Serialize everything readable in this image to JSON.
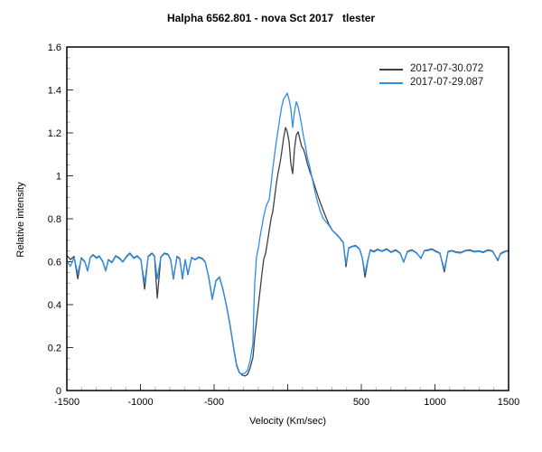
{
  "title": "Halpha 6562.801 - nova Sct 2017   tlester",
  "legend": {
    "position": "top-right-inside",
    "items": [
      {
        "label": "2017-07-30.072",
        "color": "#3C4148"
      },
      {
        "label": "2017-07-29.087",
        "color": "#2E8FE8"
      }
    ]
  },
  "chart_data": {
    "type": "line",
    "title": "Halpha 6562.801 - nova Sct 2017   tlester",
    "xlabel": "Velocity (Km/sec)",
    "ylabel": "Relative intensity",
    "xlim": [
      -1500,
      1500
    ],
    "ylim": [
      0,
      1.6
    ],
    "grid": false,
    "x_minor_step": 100,
    "x_major_step": 500,
    "y_minor_step": 0.05,
    "y_major_step": 0.2,
    "x_tick_label_values": [
      -1500,
      -1000,
      -500,
      500,
      1000,
      1500
    ],
    "x_tick_labels": [
      "-1500",
      "-1000",
      "-500",
      "500",
      "1000",
      "1500"
    ],
    "y_tick_label_values": [
      0,
      0.2,
      0.4,
      0.6,
      0.8,
      1,
      1.2,
      1.4,
      1.6
    ],
    "y_tick_labels": [
      "0",
      "0.2",
      "0.4",
      "0.6",
      "0.8",
      "1",
      "1.2",
      "1.4",
      "1.6"
    ],
    "legend_position": "top-right-inside",
    "series": [
      {
        "name": "2017-07-30.072",
        "color": "#3C4148",
        "points": [
          [
            -1500,
            0.63
          ],
          [
            -1476,
            0.61
          ],
          [
            -1451,
            0.625
          ],
          [
            -1426,
            0.52
          ],
          [
            -1402,
            0.618
          ],
          [
            -1377,
            0.6
          ],
          [
            -1359,
            0.558
          ],
          [
            -1341,
            0.62
          ],
          [
            -1322,
            0.633
          ],
          [
            -1298,
            0.618
          ],
          [
            -1279,
            0.627
          ],
          [
            -1255,
            0.6
          ],
          [
            -1236,
            0.558
          ],
          [
            -1218,
            0.61
          ],
          [
            -1193,
            0.598
          ],
          [
            -1169,
            0.628
          ],
          [
            -1144,
            0.618
          ],
          [
            -1120,
            0.6
          ],
          [
            -1095,
            0.625
          ],
          [
            -1071,
            0.64
          ],
          [
            -1046,
            0.618
          ],
          [
            -1022,
            0.628
          ],
          [
            -997,
            0.61
          ],
          [
            -972,
            0.472
          ],
          [
            -948,
            0.625
          ],
          [
            -923,
            0.64
          ],
          [
            -905,
            0.628
          ],
          [
            -886,
            0.43
          ],
          [
            -862,
            0.622
          ],
          [
            -838,
            0.64
          ],
          [
            -813,
            0.635
          ],
          [
            -795,
            0.61
          ],
          [
            -776,
            0.52
          ],
          [
            -752,
            0.625
          ],
          [
            -733,
            0.615
          ],
          [
            -715,
            0.52
          ],
          [
            -696,
            0.61
          ],
          [
            -678,
            0.54
          ],
          [
            -653,
            0.62
          ],
          [
            -629,
            0.61
          ],
          [
            -604,
            0.622
          ],
          [
            -580,
            0.615
          ],
          [
            -561,
            0.6
          ],
          [
            -537,
            0.53
          ],
          [
            -512,
            0.425
          ],
          [
            -488,
            0.51
          ],
          [
            -463,
            0.528
          ],
          [
            -439,
            0.47
          ],
          [
            -414,
            0.39
          ],
          [
            -390,
            0.3
          ],
          [
            -365,
            0.19
          ],
          [
            -347,
            0.12
          ],
          [
            -328,
            0.085
          ],
          [
            -310,
            0.072
          ],
          [
            -291,
            0.068
          ],
          [
            -273,
            0.075
          ],
          [
            -255,
            0.105
          ],
          [
            -236,
            0.155
          ],
          [
            -230,
            0.2
          ],
          [
            -224,
            0.25
          ],
          [
            -212,
            0.32
          ],
          [
            -199,
            0.4
          ],
          [
            -187,
            0.47
          ],
          [
            -175,
            0.545
          ],
          [
            -163,
            0.61
          ],
          [
            -150,
            0.64
          ],
          [
            -138,
            0.69
          ],
          [
            -126,
            0.745
          ],
          [
            -113,
            0.8
          ],
          [
            -101,
            0.835
          ],
          [
            -89,
            0.9
          ],
          [
            -77,
            0.963
          ],
          [
            -64,
            1.02
          ],
          [
            -52,
            1.06
          ],
          [
            -40,
            1.115
          ],
          [
            -28,
            1.175
          ],
          [
            -15,
            1.225
          ],
          [
            -3,
            1.205
          ],
          [
            9,
            1.16
          ],
          [
            21,
            1.06
          ],
          [
            34,
            1.01
          ],
          [
            46,
            1.125
          ],
          [
            58,
            1.19
          ],
          [
            71,
            1.205
          ],
          [
            83,
            1.17
          ],
          [
            95,
            1.135
          ],
          [
            107,
            1.125
          ],
          [
            120,
            1.095
          ],
          [
            132,
            1.06
          ],
          [
            150,
            1.02
          ],
          [
            169,
            0.985
          ],
          [
            187,
            0.945
          ],
          [
            206,
            0.905
          ],
          [
            224,
            0.87
          ],
          [
            242,
            0.838
          ],
          [
            261,
            0.805
          ],
          [
            279,
            0.775
          ],
          [
            304,
            0.745
          ],
          [
            328,
            0.73
          ],
          [
            353,
            0.712
          ],
          [
            377,
            0.69
          ],
          [
            396,
            0.577
          ],
          [
            414,
            0.665
          ],
          [
            439,
            0.672
          ],
          [
            463,
            0.675
          ],
          [
            488,
            0.66
          ],
          [
            506,
            0.62
          ],
          [
            525,
            0.528
          ],
          [
            543,
            0.6
          ],
          [
            561,
            0.655
          ],
          [
            586,
            0.648
          ],
          [
            610,
            0.658
          ],
          [
            641,
            0.65
          ],
          [
            672,
            0.66
          ],
          [
            702,
            0.645
          ],
          [
            733,
            0.655
          ],
          [
            764,
            0.64
          ],
          [
            788,
            0.598
          ],
          [
            813,
            0.648
          ],
          [
            844,
            0.655
          ],
          [
            874,
            0.642
          ],
          [
            905,
            0.615
          ],
          [
            929,
            0.652
          ],
          [
            954,
            0.655
          ],
          [
            979,
            0.66
          ],
          [
            1009,
            0.648
          ],
          [
            1034,
            0.64
          ],
          [
            1064,
            0.553
          ],
          [
            1089,
            0.648
          ],
          [
            1114,
            0.652
          ],
          [
            1144,
            0.645
          ],
          [
            1175,
            0.643
          ],
          [
            1206,
            0.652
          ],
          [
            1236,
            0.655
          ],
          [
            1267,
            0.648
          ],
          [
            1298,
            0.65
          ],
          [
            1328,
            0.645
          ],
          [
            1359,
            0.655
          ],
          [
            1390,
            0.65
          ],
          [
            1408,
            0.63
          ],
          [
            1427,
            0.605
          ],
          [
            1445,
            0.638
          ],
          [
            1463,
            0.645
          ],
          [
            1482,
            0.65
          ],
          [
            1500,
            0.652
          ]
        ]
      },
      {
        "name": "2017-07-29.087",
        "color": "#2E8FE8",
        "points": [
          [
            -1500,
            0.605
          ],
          [
            -1476,
            0.578
          ],
          [
            -1451,
            0.62
          ],
          [
            -1426,
            0.545
          ],
          [
            -1402,
            0.615
          ],
          [
            -1377,
            0.598
          ],
          [
            -1359,
            0.556
          ],
          [
            -1341,
            0.618
          ],
          [
            -1322,
            0.63
          ],
          [
            -1298,
            0.615
          ],
          [
            -1279,
            0.625
          ],
          [
            -1255,
            0.598
          ],
          [
            -1236,
            0.556
          ],
          [
            -1218,
            0.608
          ],
          [
            -1193,
            0.595
          ],
          [
            -1169,
            0.625
          ],
          [
            -1144,
            0.615
          ],
          [
            -1120,
            0.598
          ],
          [
            -1095,
            0.622
          ],
          [
            -1071,
            0.637
          ],
          [
            -1046,
            0.615
          ],
          [
            -1022,
            0.625
          ],
          [
            -997,
            0.608
          ],
          [
            -972,
            0.5
          ],
          [
            -948,
            0.622
          ],
          [
            -923,
            0.637
          ],
          [
            -905,
            0.625
          ],
          [
            -886,
            0.52
          ],
          [
            -862,
            0.62
          ],
          [
            -838,
            0.637
          ],
          [
            -813,
            0.632
          ],
          [
            -795,
            0.608
          ],
          [
            -776,
            0.525
          ],
          [
            -752,
            0.622
          ],
          [
            -733,
            0.612
          ],
          [
            -715,
            0.525
          ],
          [
            -696,
            0.608
          ],
          [
            -678,
            0.545
          ],
          [
            -653,
            0.618
          ],
          [
            -629,
            0.608
          ],
          [
            -604,
            0.62
          ],
          [
            -580,
            0.612
          ],
          [
            -561,
            0.598
          ],
          [
            -537,
            0.528
          ],
          [
            -512,
            0.428
          ],
          [
            -488,
            0.512
          ],
          [
            -463,
            0.53
          ],
          [
            -439,
            0.468
          ],
          [
            -414,
            0.388
          ],
          [
            -390,
            0.295
          ],
          [
            -365,
            0.185
          ],
          [
            -347,
            0.115
          ],
          [
            -328,
            0.082
          ],
          [
            -310,
            0.078
          ],
          [
            -291,
            0.08
          ],
          [
            -273,
            0.095
          ],
          [
            -255,
            0.14
          ],
          [
            -236,
            0.22
          ],
          [
            -230,
            0.38
          ],
          [
            -224,
            0.5
          ],
          [
            -212,
            0.62
          ],
          [
            -199,
            0.665
          ],
          [
            -187,
            0.72
          ],
          [
            -175,
            0.765
          ],
          [
            -163,
            0.81
          ],
          [
            -150,
            0.85
          ],
          [
            -138,
            0.873
          ],
          [
            -126,
            0.89
          ],
          [
            -113,
            0.962
          ],
          [
            -101,
            1.035
          ],
          [
            -89,
            1.1
          ],
          [
            -77,
            1.16
          ],
          [
            -64,
            1.22
          ],
          [
            -52,
            1.275
          ],
          [
            -40,
            1.325
          ],
          [
            -28,
            1.358
          ],
          [
            -15,
            1.372
          ],
          [
            -3,
            1.385
          ],
          [
            9,
            1.355
          ],
          [
            21,
            1.315
          ],
          [
            34,
            1.225
          ],
          [
            46,
            1.3
          ],
          [
            58,
            1.345
          ],
          [
            71,
            1.32
          ],
          [
            83,
            1.28
          ],
          [
            95,
            1.235
          ],
          [
            107,
            1.185
          ],
          [
            120,
            1.14
          ],
          [
            132,
            1.09
          ],
          [
            150,
            1.04
          ],
          [
            169,
            0.98
          ],
          [
            187,
            0.92
          ],
          [
            206,
            0.87
          ],
          [
            224,
            0.83
          ],
          [
            242,
            0.8
          ],
          [
            261,
            0.785
          ],
          [
            279,
            0.77
          ],
          [
            304,
            0.745
          ],
          [
            328,
            0.728
          ],
          [
            353,
            0.71
          ],
          [
            377,
            0.688
          ],
          [
            396,
            0.59
          ],
          [
            414,
            0.663
          ],
          [
            439,
            0.67
          ],
          [
            463,
            0.672
          ],
          [
            488,
            0.658
          ],
          [
            506,
            0.618
          ],
          [
            525,
            0.548
          ],
          [
            543,
            0.605
          ],
          [
            561,
            0.652
          ],
          [
            586,
            0.645
          ],
          [
            610,
            0.655
          ],
          [
            641,
            0.648
          ],
          [
            672,
            0.657
          ],
          [
            702,
            0.643
          ],
          [
            733,
            0.652
          ],
          [
            764,
            0.638
          ],
          [
            788,
            0.6
          ],
          [
            813,
            0.645
          ],
          [
            844,
            0.652
          ],
          [
            874,
            0.64
          ],
          [
            905,
            0.618
          ],
          [
            929,
            0.65
          ],
          [
            954,
            0.652
          ],
          [
            979,
            0.657
          ],
          [
            1009,
            0.645
          ],
          [
            1034,
            0.638
          ],
          [
            1064,
            0.565
          ],
          [
            1089,
            0.645
          ],
          [
            1114,
            0.65
          ],
          [
            1144,
            0.642
          ],
          [
            1175,
            0.64
          ],
          [
            1206,
            0.65
          ],
          [
            1236,
            0.652
          ],
          [
            1267,
            0.645
          ],
          [
            1298,
            0.648
          ],
          [
            1328,
            0.642
          ],
          [
            1359,
            0.652
          ],
          [
            1390,
            0.648
          ],
          [
            1408,
            0.628
          ],
          [
            1427,
            0.61
          ],
          [
            1445,
            0.635
          ],
          [
            1463,
            0.642
          ],
          [
            1482,
            0.648
          ],
          [
            1500,
            0.65
          ]
        ]
      }
    ]
  }
}
